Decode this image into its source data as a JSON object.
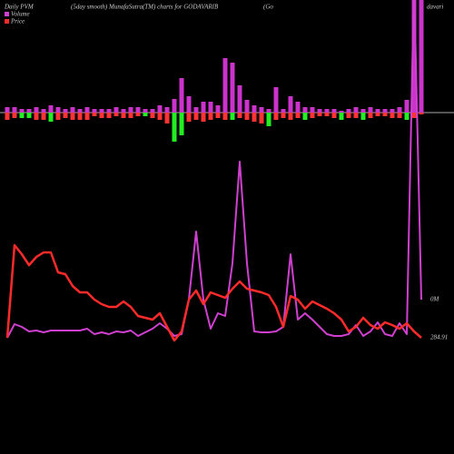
{
  "chart_data": {
    "type": "pvm",
    "title": [
      "Daily PVM",
      "(5day smooth) MunafaSutra(TM) charts for GODAVARIB",
      "(Go",
      "davari"
    ],
    "ylim": [
      0,
      500
    ],
    "y2lim": [
      -376,
      124
    ],
    "series": [
      {
        "name": "Volume",
        "color": "#d040d0",
        "values": [
          128,
          143,
          140,
          135,
          136,
          134,
          136,
          136,
          136,
          136,
          136,
          138,
          132,
          134,
          132,
          135,
          134,
          136,
          130,
          134,
          138,
          144,
          138,
          130,
          132,
          170,
          245,
          170,
          138,
          155,
          152,
          210,
          322,
          210,
          135,
          134,
          134,
          135,
          140,
          220,
          148,
          155,
          148,
          140,
          132,
          130,
          130,
          132,
          142,
          130,
          135,
          145,
          132,
          130,
          144,
          132,
          520,
          170
        ]
      },
      {
        "name": "Price",
        "color": "#ff2a2a",
        "values": [
          128,
          230,
          220,
          208,
          217,
          222,
          222,
          200,
          198,
          185,
          178,
          178,
          170,
          165,
          162,
          162,
          168,
          162,
          152,
          150,
          148,
          155,
          140,
          125,
          135,
          170,
          180,
          165,
          178,
          175,
          172,
          182,
          190,
          182,
          180,
          178,
          175,
          162,
          140,
          174,
          170,
          160,
          168,
          164,
          160,
          155,
          148,
          135,
          140,
          150,
          142,
          138,
          145,
          142,
          138,
          144,
          135,
          128
        ]
      }
    ],
    "bars": {
      "axis": "y2",
      "up_color": "#cc33cc",
      "up": [
        6,
        6,
        4,
        4,
        6,
        4,
        8,
        6,
        4,
        6,
        4,
        6,
        4,
        4,
        4,
        6,
        4,
        6,
        6,
        4,
        4,
        8,
        6,
        15,
        38,
        18,
        6,
        12,
        12,
        8,
        60,
        55,
        30,
        14,
        8,
        6,
        4,
        28,
        4,
        18,
        12,
        6,
        6,
        4,
        4,
        4,
        2,
        4,
        6,
        4,
        6,
        4,
        4,
        4,
        6,
        14,
        130,
        130
      ],
      "down": [
        -8,
        -6,
        -6,
        -6,
        -8,
        -8,
        -10,
        -8,
        -6,
        -8,
        -8,
        -8,
        -4,
        -6,
        -6,
        -4,
        -6,
        -6,
        -4,
        -4,
        -6,
        -8,
        -12,
        -32,
        -25,
        -10,
        -8,
        -10,
        -8,
        -6,
        -8,
        -8,
        -6,
        -8,
        -10,
        -12,
        -15,
        -8,
        -6,
        -8,
        -6,
        -8,
        -6,
        -4,
        -4,
        -6,
        -8,
        -6,
        -6,
        -8,
        -6,
        -4,
        -4,
        -6,
        -6,
        -8,
        -6,
        -2
      ],
      "down_colors": [
        "#ff3333",
        "#ff3333",
        "#22ee22",
        "#22ee22",
        "#ff3333",
        "#ff3333",
        "#22ee22",
        "#ff3333",
        "#ff3333",
        "#ff3333",
        "#ff3333",
        "#ff3333",
        "#ff3333",
        "#ff3333",
        "#ff3333",
        "#ff3333",
        "#ff3333",
        "#ff3333",
        "#ff3333",
        "#22ee22",
        "#ff3333",
        "#ff3333",
        "#ff3333",
        "#22ee22",
        "#22ee22",
        "#ff3333",
        "#ff3333",
        "#ff3333",
        "#ff3333",
        "#ff3333",
        "#ff3333",
        "#22ee22",
        "#ff3333",
        "#ff3333",
        "#ff3333",
        "#ff3333",
        "#22ee22",
        "#ff3333",
        "#ff3333",
        "#ff3333",
        "#ff3333",
        "#22ee22",
        "#ff3333",
        "#ff3333",
        "#ff3333",
        "#ff3333",
        "#22ee22",
        "#ff3333",
        "#ff3333",
        "#22ee22",
        "#ff3333",
        "#ff3333",
        "#ff3333",
        "#ff3333",
        "#ff3333",
        "#22ee22",
        "#ff3333",
        "#ff3333"
      ]
    },
    "annotations": [
      "0M",
      "284.91"
    ]
  }
}
